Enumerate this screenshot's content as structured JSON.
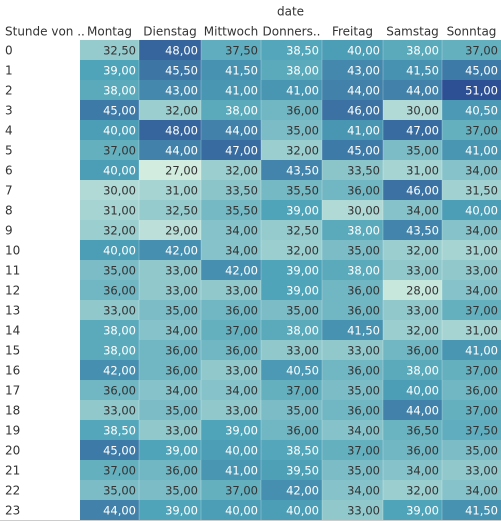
{
  "chart_data": {
    "type": "heatmap",
    "column_header": "date",
    "row_header": "Stunde von ..",
    "columns": [
      "Montag",
      "Dienstag",
      "Mittwoch",
      "Donners..",
      "Freitag",
      "Samstag",
      "Sonntag"
    ],
    "rows": [
      "0",
      "1",
      "2",
      "3",
      "4",
      "5",
      "6",
      "7",
      "8",
      "9",
      "10",
      "11",
      "12",
      "13",
      "14",
      "15",
      "16",
      "17",
      "18",
      "19",
      "20",
      "21",
      "22",
      "23"
    ],
    "cells": [
      [
        "32,50",
        "48,00",
        "37,50",
        "38,50",
        "40,00",
        "38,00",
        "37,00"
      ],
      [
        "39,00",
        "45,50",
        "41,50",
        "38,00",
        "43,00",
        "41,50",
        "45,00"
      ],
      [
        "38,00",
        "43,00",
        "41,00",
        "41,00",
        "44,00",
        "44,00",
        "51,00"
      ],
      [
        "45,00",
        "32,00",
        "38,00",
        "36,00",
        "46,00",
        "30,00",
        "40,50"
      ],
      [
        "40,00",
        "48,00",
        "44,00",
        "35,00",
        "41,00",
        "47,00",
        "37,00"
      ],
      [
        "37,00",
        "44,00",
        "47,00",
        "32,00",
        "45,00",
        "35,00",
        "41,00"
      ],
      [
        "40,00",
        "27,00",
        "32,00",
        "43,50",
        "33,50",
        "31,00",
        "34,00"
      ],
      [
        "30,00",
        "31,00",
        "33,50",
        "35,50",
        "36,00",
        "46,00",
        "31,50"
      ],
      [
        "31,00",
        "32,50",
        "35,50",
        "39,00",
        "30,00",
        "34,00",
        "40,00"
      ],
      [
        "32,00",
        "29,00",
        "34,00",
        "32,50",
        "38,00",
        "43,50",
        "34,00"
      ],
      [
        "40,00",
        "42,00",
        "34,00",
        "32,00",
        "35,00",
        "32,00",
        "31,00"
      ],
      [
        "35,00",
        "33,00",
        "42,00",
        "39,00",
        "38,00",
        "33,00",
        "33,00"
      ],
      [
        "36,00",
        "33,00",
        "33,00",
        "39,00",
        "36,00",
        "28,00",
        "34,00"
      ],
      [
        "33,00",
        "35,00",
        "36,00",
        "35,00",
        "36,00",
        "33,00",
        "37,00"
      ],
      [
        "38,00",
        "34,00",
        "37,00",
        "38,00",
        "41,50",
        "32,00",
        "31,00"
      ],
      [
        "38,00",
        "36,00",
        "36,00",
        "33,00",
        "33,00",
        "36,00",
        "41,00"
      ],
      [
        "42,00",
        "36,00",
        "33,00",
        "40,50",
        "36,00",
        "38,00",
        "37,00"
      ],
      [
        "36,00",
        "34,00",
        "34,00",
        "37,00",
        "35,00",
        "40,00",
        "36,00"
      ],
      [
        "33,00",
        "35,00",
        "33,00",
        "35,00",
        "36,00",
        "44,00",
        "37,00"
      ],
      [
        "38,50",
        "33,00",
        "39,00",
        "36,00",
        "34,00",
        "36,50",
        "37,50"
      ],
      [
        "45,00",
        "39,00",
        "40,00",
        "38,50",
        "37,00",
        "36,00",
        "35,00"
      ],
      [
        "37,00",
        "36,00",
        "41,00",
        "39,50",
        "35,00",
        "34,00",
        "33,00"
      ],
      [
        "35,00",
        "35,00",
        "37,00",
        "42,00",
        "34,00",
        "32,00",
        "34,00"
      ],
      [
        "44,00",
        "39,00",
        "40,00",
        "40,00",
        "33,00",
        "39,00",
        "41,50"
      ]
    ],
    "color_scale": {
      "min": 27,
      "max": 51,
      "low_color": "#d2ecdf",
      "mid_color": "#4fa4b9",
      "high_color": "#2d4f94"
    }
  }
}
